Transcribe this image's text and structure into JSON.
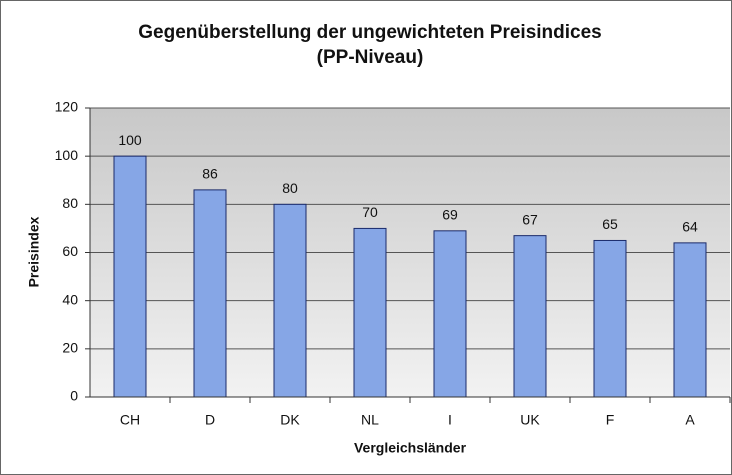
{
  "chart_data": {
    "type": "bar",
    "title": "Gegenüberstellung der ungewichteten Preisindices",
    "subtitle": "(PP-Niveau)",
    "x_label": "Vergleichsländer",
    "y_label": "Preisindex",
    "categories": [
      "CH",
      "D",
      "DK",
      "NL",
      "I",
      "UK",
      "F",
      "A"
    ],
    "values": [
      100,
      86,
      80,
      70,
      69,
      67,
      65,
      64
    ],
    "color": "#86a6e6",
    "ylim": [
      0,
      120
    ],
    "yticks": [
      0,
      20,
      40,
      60,
      80,
      100,
      120
    ],
    "grid": true
  }
}
